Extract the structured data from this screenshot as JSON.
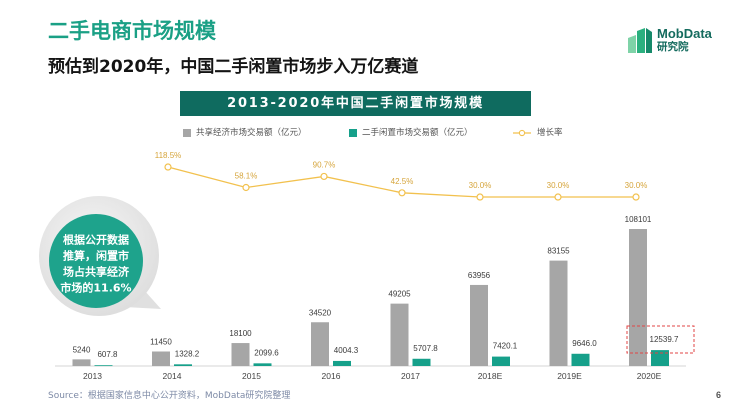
{
  "slide": {
    "title": "二手电商市场规模",
    "subtitle": "预估到2020年，中国二手闲置市场步入万亿赛道",
    "page_number": "6"
  },
  "logo": {
    "brand": "MobData",
    "sub": "研究院",
    "icon": "buildings-logo-icon"
  },
  "callout": {
    "lines": [
      "根据公开数据",
      "推算，闲置市",
      "场占共享经济",
      "市场的11.6%"
    ]
  },
  "footer": {
    "source": "Source：根据国家信息中心公开资料，MobData研究院整理"
  },
  "colors": {
    "accent": "#1aa085",
    "banner": "#0f6b5f",
    "callout": "#1ea38c",
    "highlight": "#e04646"
  },
  "chart_data": {
    "type": "bar",
    "title": "2013-2020年中国二手闲置市场规模",
    "categories": [
      "2013",
      "2014",
      "2015",
      "2016",
      "2017",
      "2018E",
      "2019E",
      "2020E"
    ],
    "series": [
      {
        "name": "共享经济市场交易额（亿元）",
        "type": "bar",
        "color": "#a6a6a6",
        "values": [
          5240,
          11450,
          18100,
          34520,
          49205,
          63956,
          83155,
          108101
        ]
      },
      {
        "name": "二手闲置市场交易额（亿元）",
        "type": "bar",
        "color": "#16a08a",
        "values": [
          607.8,
          1328.2,
          2099.6,
          4004.3,
          5707.8,
          7420.1,
          9646.0,
          12539.7
        ]
      },
      {
        "name": "增长率",
        "type": "line",
        "color": "#f2c14e",
        "value_suffix": "%",
        "values": [
          null,
          118.5,
          58.1,
          90.7,
          42.5,
          30.0,
          30.0,
          30.0
        ]
      }
    ],
    "legend": "top",
    "grid": false
  }
}
